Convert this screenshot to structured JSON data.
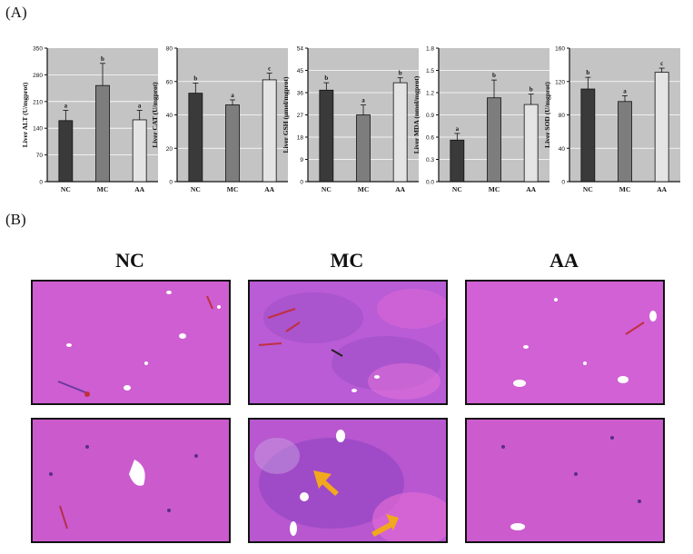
{
  "panel_a_label": "(A)",
  "panel_b_label": "(B)",
  "histology": {
    "columns": [
      "NC",
      "MC",
      "AA"
    ]
  },
  "chart_data": [
    {
      "type": "bar",
      "ylabel": "Liver ALT (U/mgprot)",
      "categories": [
        "NC",
        "MC",
        "AA"
      ],
      "values": [
        160,
        252,
        162
      ],
      "errors": [
        27,
        58,
        25
      ],
      "letters": [
        "a",
        "b",
        "a"
      ],
      "ylim": [
        0,
        350
      ],
      "yticks": [
        "0",
        "70",
        "140",
        "210",
        "280",
        "350"
      ],
      "grid": true
    },
    {
      "type": "bar",
      "ylabel": "Liver CAT (U/mgprot)",
      "categories": [
        "NC",
        "MC",
        "AA"
      ],
      "values": [
        53,
        46,
        61
      ],
      "errors": [
        6,
        3,
        4
      ],
      "letters": [
        "b",
        "a",
        "c"
      ],
      "ylim": [
        0,
        80
      ],
      "yticks": [
        "0",
        "20",
        "40",
        "60",
        "80"
      ],
      "grid": true
    },
    {
      "type": "bar",
      "ylabel": "Liver GSH (μmol/mgprot)",
      "categories": [
        "NC",
        "MC",
        "AA"
      ],
      "values": [
        37,
        27,
        40
      ],
      "errors": [
        3,
        4,
        2
      ],
      "letters": [
        "b",
        "a",
        "b"
      ],
      "ylim": [
        0,
        54
      ],
      "yticks": [
        "0",
        "9",
        "18",
        "27",
        "36",
        "45",
        "54"
      ],
      "grid": true
    },
    {
      "type": "bar",
      "ylabel": "Liver MDA (nmol/mgprot)",
      "categories": [
        "NC",
        "MC",
        "AA"
      ],
      "values": [
        0.56,
        1.13,
        1.04
      ],
      "errors": [
        0.09,
        0.24,
        0.14
      ],
      "letters": [
        "a",
        "b",
        "b"
      ],
      "ylim": [
        0,
        1.8
      ],
      "yticks": [
        "0.0",
        "0.3",
        "0.6",
        "0.9",
        "1.2",
        "1.5",
        "1.8"
      ],
      "grid": true
    },
    {
      "type": "bar",
      "ylabel": "Liver SOD (U/mgprot)",
      "categories": [
        "NC",
        "MC",
        "AA"
      ],
      "values": [
        111,
        96,
        131
      ],
      "errors": [
        14,
        7,
        5
      ],
      "letters": [
        "b",
        "a",
        "c"
      ],
      "ylim": [
        0,
        160
      ],
      "yticks": [
        "0",
        "40",
        "80",
        "120",
        "160"
      ],
      "grid": true
    }
  ],
  "colors": {
    "plot_bg": "#c4c4c4",
    "bar_nc": "#3a3a3a",
    "bar_mc": "#7d7d7d",
    "bar_aa": "#e4e4e4",
    "tissue_pink": "#d95fcf",
    "tissue_purple": "#a24fd0",
    "arrow": "#f2a81d"
  }
}
